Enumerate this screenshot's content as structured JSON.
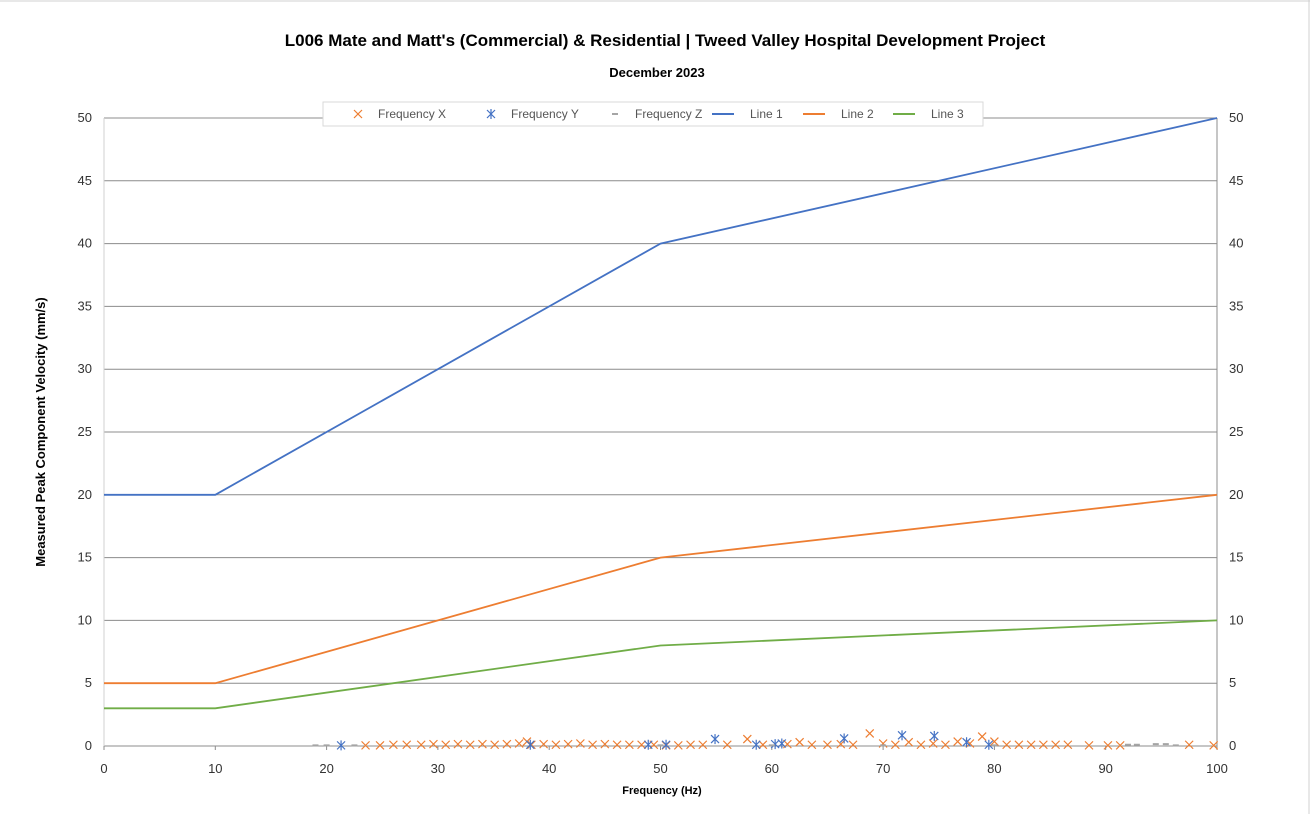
{
  "chart_data": {
    "type": "line",
    "title": "L006 Mate and Matt's (Commercial) & Residential | Tweed Valley Hospital Development Project",
    "subtitle": "December 2023",
    "xlabel": "Frequency (Hz)",
    "ylabel": "Measured Peak Component Velocity (mm/s)",
    "xlim": [
      0,
      100
    ],
    "ylim": [
      0,
      50
    ],
    "x_ticks": [
      "0",
      "10",
      "20",
      "30",
      "40",
      "50",
      "60",
      "70",
      "80",
      "90",
      "100"
    ],
    "y_ticks": [
      "0",
      "5",
      "10",
      "15",
      "20",
      "25",
      "30",
      "35",
      "40",
      "45",
      "50"
    ],
    "secondary_y_ticks": [
      "0",
      "5",
      "10",
      "15",
      "20",
      "25",
      "30",
      "35",
      "40",
      "45",
      "50"
    ],
    "grid": "horizontal",
    "legend_position": "top",
    "series": [
      {
        "name": "Frequency X",
        "kind": "scatter",
        "marker": "x",
        "color": "#ED7D31",
        "points": [
          [
            23.5,
            0.05
          ],
          [
            24.8,
            0.05
          ],
          [
            26,
            0.1
          ],
          [
            27.2,
            0.1
          ],
          [
            28.5,
            0.1
          ],
          [
            29.6,
            0.15
          ],
          [
            30.7,
            0.1
          ],
          [
            31.8,
            0.15
          ],
          [
            32.9,
            0.1
          ],
          [
            34,
            0.15
          ],
          [
            35.1,
            0.1
          ],
          [
            36.2,
            0.15
          ],
          [
            37.3,
            0.2
          ],
          [
            38,
            0.35
          ],
          [
            38.4,
            0.1
          ],
          [
            39.5,
            0.15
          ],
          [
            40.6,
            0.1
          ],
          [
            41.7,
            0.15
          ],
          [
            42.8,
            0.2
          ],
          [
            43.9,
            0.1
          ],
          [
            45,
            0.15
          ],
          [
            46.1,
            0.1
          ],
          [
            47.2,
            0.1
          ],
          [
            48.3,
            0.1
          ],
          [
            49.4,
            0.1
          ],
          [
            50.5,
            0.05
          ],
          [
            51.6,
            0.05
          ],
          [
            52.7,
            0.1
          ],
          [
            53.8,
            0.1
          ],
          [
            56,
            0.1
          ],
          [
            57.8,
            0.55
          ],
          [
            59.2,
            0.1
          ],
          [
            61.4,
            0.15
          ],
          [
            62.5,
            0.3
          ],
          [
            63.6,
            0.1
          ],
          [
            65,
            0.1
          ],
          [
            66.2,
            0.15
          ],
          [
            67.3,
            0.1
          ],
          [
            68.8,
            1.0
          ],
          [
            70,
            0.2
          ],
          [
            71.1,
            0.1
          ],
          [
            72.3,
            0.3
          ],
          [
            73.4,
            0.1
          ],
          [
            74.5,
            0.2
          ],
          [
            75.6,
            0.1
          ],
          [
            76.7,
            0.35
          ],
          [
            77.8,
            0.2
          ],
          [
            78.9,
            0.75
          ],
          [
            80,
            0.35
          ],
          [
            81.1,
            0.1
          ],
          [
            82.2,
            0.1
          ],
          [
            83.3,
            0.1
          ],
          [
            84.4,
            0.1
          ],
          [
            85.5,
            0.1
          ],
          [
            86.6,
            0.1
          ],
          [
            88.5,
            0.05
          ],
          [
            90.2,
            0.05
          ],
          [
            91.3,
            0.05
          ],
          [
            97.5,
            0.1
          ],
          [
            99.7,
            0.05
          ]
        ]
      },
      {
        "name": "Frequency Y",
        "kind": "scatter",
        "marker": "asterisk",
        "color": "#4472C4",
        "points": [
          [
            21.3,
            0.05
          ],
          [
            38.3,
            0.1
          ],
          [
            48.9,
            0.1
          ],
          [
            50.5,
            0.1
          ],
          [
            54.9,
            0.55
          ],
          [
            58.6,
            0.1
          ],
          [
            60.3,
            0.15
          ],
          [
            60.9,
            0.2
          ],
          [
            66.5,
            0.6
          ],
          [
            71.7,
            0.85
          ],
          [
            74.6,
            0.8
          ],
          [
            77.5,
            0.3
          ],
          [
            79.5,
            0.1
          ]
        ]
      },
      {
        "name": "Frequency Z",
        "kind": "scatter",
        "marker": "dash",
        "color": "#A5A5A5",
        "points": [
          [
            19,
            0.05
          ],
          [
            20,
            0.05
          ],
          [
            22.5,
            0.05
          ],
          [
            50,
            0.05
          ],
          [
            60,
            0.05
          ],
          [
            70,
            0.05
          ],
          [
            80,
            0.05
          ],
          [
            92,
            0.1
          ],
          [
            92.8,
            0.1
          ],
          [
            94.5,
            0.15
          ],
          [
            95.4,
            0.15
          ],
          [
            96.3,
            0.05
          ]
        ]
      },
      {
        "name": "Line 1",
        "kind": "line",
        "color": "#4472C4",
        "points": [
          [
            0,
            20
          ],
          [
            10,
            20
          ],
          [
            50,
            40
          ],
          [
            100,
            50
          ]
        ]
      },
      {
        "name": "Line 2",
        "kind": "line",
        "color": "#ED7D31",
        "points": [
          [
            0,
            5
          ],
          [
            10,
            5
          ],
          [
            50,
            15
          ],
          [
            100,
            20
          ]
        ]
      },
      {
        "name": "Line 3",
        "kind": "line",
        "color": "#70AD47",
        "points": [
          [
            0,
            3
          ],
          [
            10,
            3
          ],
          [
            50,
            8
          ],
          [
            100,
            10
          ]
        ]
      }
    ]
  }
}
